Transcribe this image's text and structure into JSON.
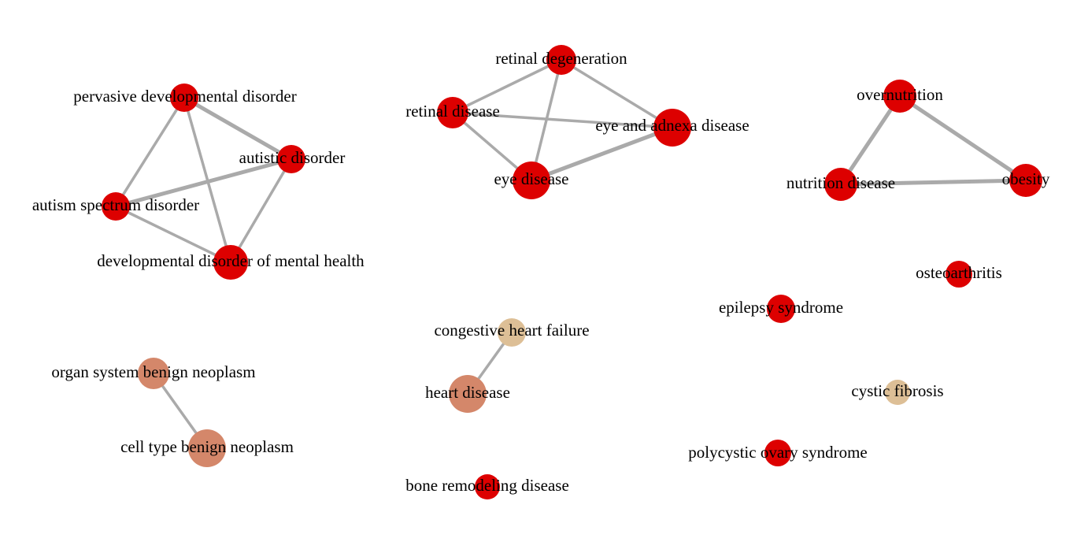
{
  "colors": {
    "high": "#dd0000",
    "medium": "#d4876a",
    "low": "#ddbf96",
    "edge": "#aaaaaa",
    "label": "#000000"
  },
  "nodes": [
    {
      "id": "pdd",
      "label": "pervasive developmental disorder",
      "color": "high"
    },
    {
      "id": "autistic",
      "label": "autistic disorder",
      "color": "high"
    },
    {
      "id": "asd",
      "label": "autism spectrum disorder",
      "color": "high"
    },
    {
      "id": "ddmh",
      "label": "developmental disorder of mental health",
      "color": "high"
    },
    {
      "id": "retdeg",
      "label": "retinal degeneration",
      "color": "high"
    },
    {
      "id": "retdis",
      "label": "retinal disease",
      "color": "high"
    },
    {
      "id": "eyeadnexa",
      "label": "eye and adnexa disease",
      "color": "high"
    },
    {
      "id": "eyedis",
      "label": "eye disease",
      "color": "high"
    },
    {
      "id": "overnutrition",
      "label": "overnutrition",
      "color": "high"
    },
    {
      "id": "nutrition",
      "label": "nutrition disease",
      "color": "high"
    },
    {
      "id": "obesity",
      "label": "obesity",
      "color": "high"
    },
    {
      "id": "osteoarthritis",
      "label": "osteoarthritis",
      "color": "high"
    },
    {
      "id": "epilepsy",
      "label": "epilepsy syndrome",
      "color": "high"
    },
    {
      "id": "chf",
      "label": "congestive heart failure",
      "color": "low"
    },
    {
      "id": "heart",
      "label": "heart disease",
      "color": "medium"
    },
    {
      "id": "osbn",
      "label": "organ system benign neoplasm",
      "color": "medium"
    },
    {
      "id": "ctbn",
      "label": "cell type benign neoplasm",
      "color": "medium"
    },
    {
      "id": "cf",
      "label": "cystic fibrosis",
      "color": "low"
    },
    {
      "id": "pcos",
      "label": "polycystic ovary syndrome",
      "color": "high"
    },
    {
      "id": "bone",
      "label": "bone remodeling disease",
      "color": "high"
    }
  ],
  "edges": [
    {
      "source": "pdd",
      "target": "autistic",
      "weight": 3
    },
    {
      "source": "pdd",
      "target": "asd",
      "weight": 2
    },
    {
      "source": "pdd",
      "target": "ddmh",
      "weight": 2
    },
    {
      "source": "autistic",
      "target": "asd",
      "weight": 3
    },
    {
      "source": "autistic",
      "target": "ddmh",
      "weight": 2
    },
    {
      "source": "asd",
      "target": "ddmh",
      "weight": 2
    },
    {
      "source": "retdeg",
      "target": "retdis",
      "weight": 2
    },
    {
      "source": "retdeg",
      "target": "eyeadnexa",
      "weight": 2
    },
    {
      "source": "retdeg",
      "target": "eyedis",
      "weight": 2
    },
    {
      "source": "retdis",
      "target": "eyeadnexa",
      "weight": 2
    },
    {
      "source": "retdis",
      "target": "eyedis",
      "weight": 2
    },
    {
      "source": "eyedis",
      "target": "eyeadnexa",
      "weight": 3
    },
    {
      "source": "overnutrition",
      "target": "nutrition",
      "weight": 3
    },
    {
      "source": "overnutrition",
      "target": "obesity",
      "weight": 3
    },
    {
      "source": "nutrition",
      "target": "obesity",
      "weight": 3
    },
    {
      "source": "chf",
      "target": "heart",
      "weight": 2
    },
    {
      "source": "osbn",
      "target": "ctbn",
      "weight": 2
    }
  ]
}
